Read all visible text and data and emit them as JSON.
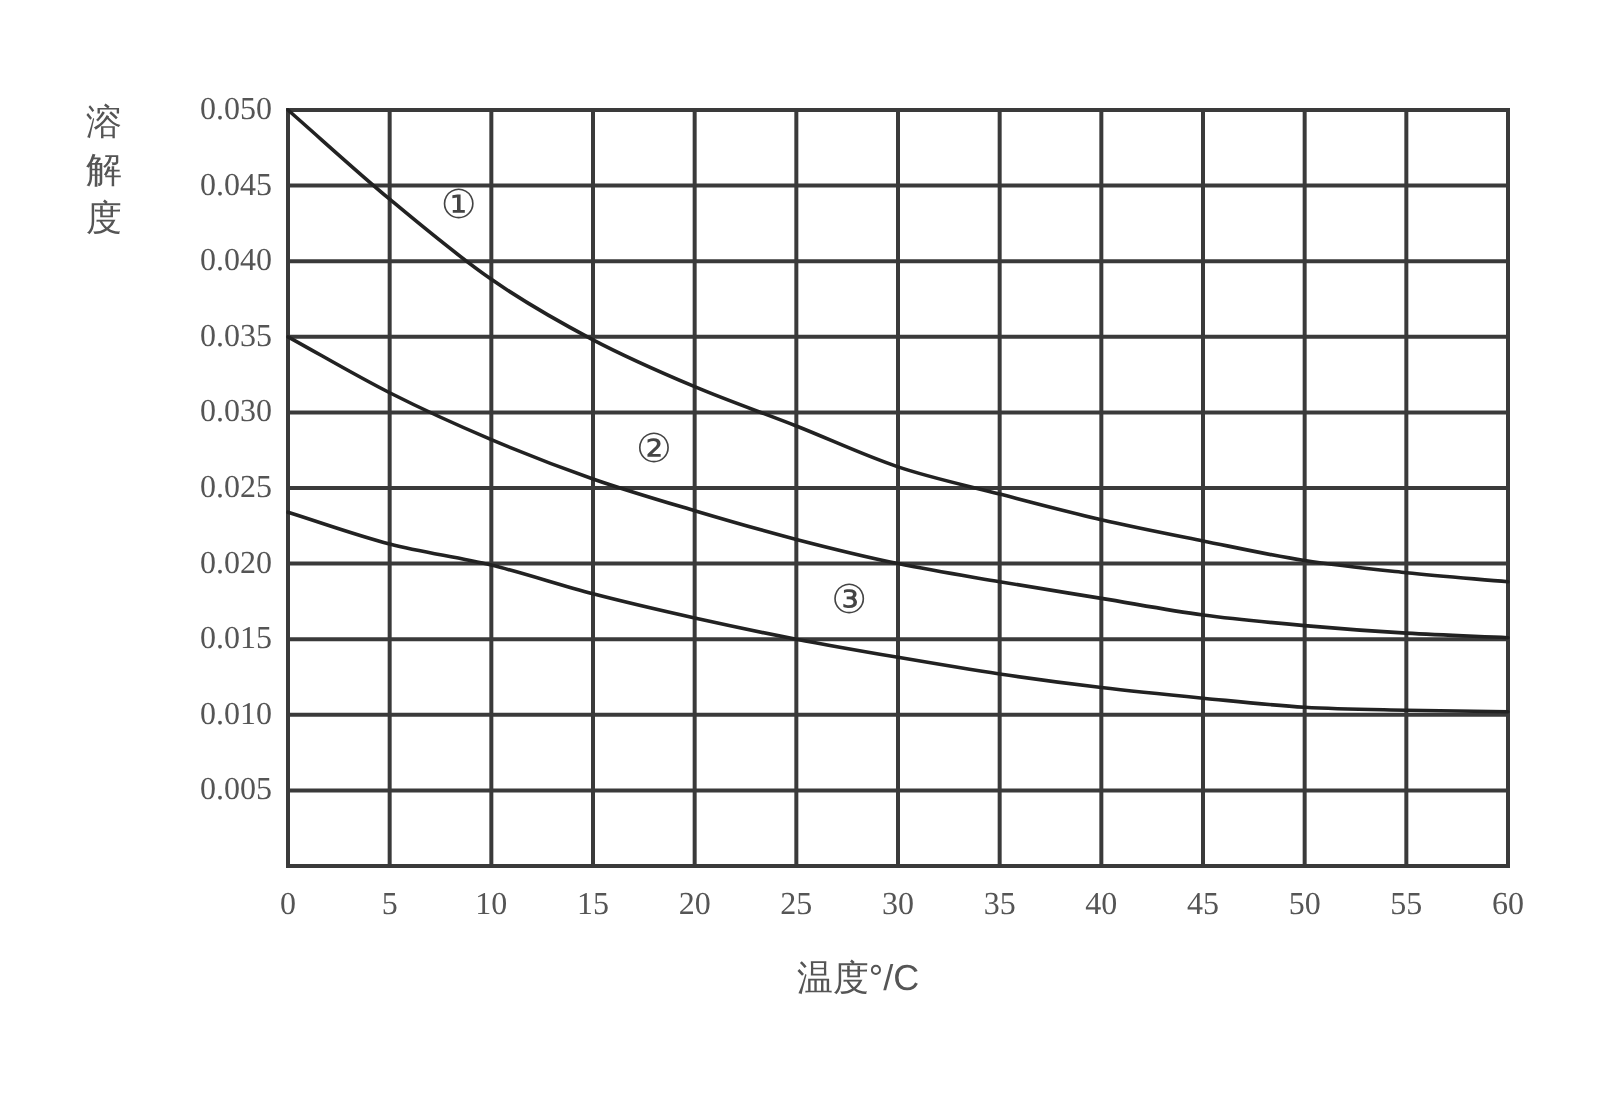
{
  "chart_data": {
    "type": "line",
    "xlabel": "温度°/C",
    "ylabel": "溶解度",
    "x": [
      0,
      5,
      10,
      15,
      20,
      25,
      30,
      35,
      40,
      45,
      50,
      55,
      60
    ],
    "series": [
      {
        "name": "①",
        "color": "#222222",
        "values": [
          0.05,
          0.0441,
          0.0388,
          0.0348,
          0.0317,
          0.0291,
          0.0264,
          0.0246,
          0.0229,
          0.0215,
          0.0202,
          0.0194,
          0.0188
        ]
      },
      {
        "name": "②",
        "color": "#222222",
        "values": [
          0.035,
          0.0313,
          0.0282,
          0.0256,
          0.0235,
          0.0216,
          0.02,
          0.0188,
          0.0177,
          0.0166,
          0.0159,
          0.0154,
          0.0151
        ]
      },
      {
        "name": "③",
        "color": "#222222",
        "values": [
          0.0234,
          0.0213,
          0.0199,
          0.018,
          0.0164,
          0.015,
          0.0138,
          0.0127,
          0.0118,
          0.0111,
          0.0105,
          0.0103,
          0.0102
        ]
      }
    ],
    "xlim": [
      0,
      60
    ],
    "ylim": [
      0,
      0.05
    ],
    "xticks": [
      0,
      5,
      10,
      15,
      20,
      25,
      30,
      35,
      40,
      45,
      50,
      55,
      60
    ],
    "yticks": [
      0.005,
      {
        "value": 0.01,
        "label": "0.010"
      },
      0.015,
      {
        "value": 0.02,
        "label": "0.020"
      },
      0.025,
      {
        "value": 0.03,
        "label": "0.030"
      },
      0.035,
      {
        "value": 0.04,
        "label": "0.040"
      },
      0.045,
      {
        "value": 0.05,
        "label": "0.050"
      }
    ],
    "grid": true
  }
}
